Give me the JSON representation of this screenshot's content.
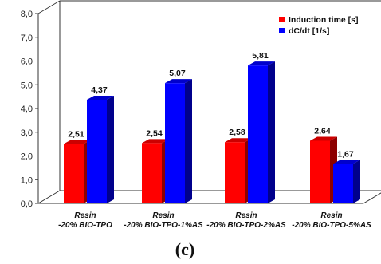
{
  "chart_data": {
    "type": "bar",
    "categories": [
      [
        "Resin",
        "-20% BIO-TPO"
      ],
      [
        "Resin",
        "-20% BIO-TPO-1%AS"
      ],
      [
        "Resin",
        "-20% BIO-TPO-2%AS"
      ],
      [
        "Resin",
        "-20% BIO-TPO-5%AS"
      ]
    ],
    "series": [
      {
        "name": "Induction time [s]",
        "values": [
          2.51,
          2.54,
          2.58,
          2.64
        ],
        "labels": [
          "2,51",
          "2,54",
          "2,58",
          "2,64"
        ],
        "color": "#ff0000"
      },
      {
        "name": "dC/dt [1/s]",
        "values": [
          4.37,
          5.07,
          5.81,
          1.67
        ],
        "labels": [
          "4,37",
          "5,07",
          "5,81",
          "1,67"
        ],
        "color": "#0000ff"
      }
    ],
    "y_ticks": [
      "0,0",
      "1,0",
      "2,0",
      "3,0",
      "4,0",
      "5,0",
      "6,0",
      "7,0",
      "8,0"
    ],
    "ylim": [
      0,
      8
    ],
    "grid": false,
    "legend_position": "top-right",
    "caption": "(c)"
  }
}
